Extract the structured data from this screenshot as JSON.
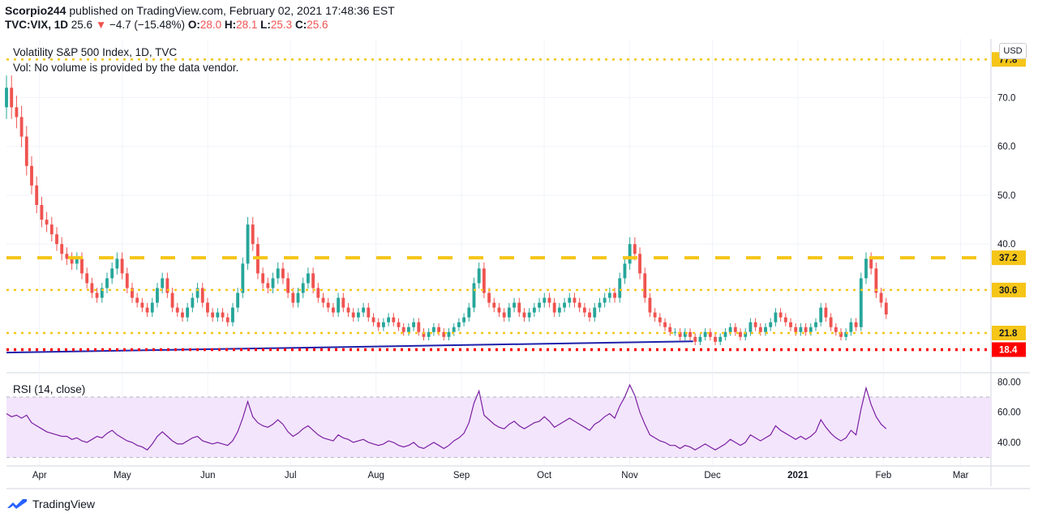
{
  "header": {
    "publisher": "Scorpio244",
    "published_text": "published on TradingView.com, February 02, 2021 17:48:36 EST",
    "symbol": "TVC:VIX, 1D",
    "last": "25.6",
    "change": "−4.7 (−15.48%)",
    "o_label": "O:",
    "o_val": "28.0",
    "h_label": "H:",
    "h_val": "28.1",
    "l_label": "L:",
    "l_val": "25.3",
    "c_label": "C:",
    "c_val": "25.6"
  },
  "panels": {
    "price_title": "Volatility S&P 500 Index, 1D, TVC",
    "volume_note": "Vol: No volume is provided by the data vendor.",
    "rsi_title": "RSI (14, close)"
  },
  "currency": "USD",
  "footer": {
    "brand": "TradingView"
  },
  "colors": {
    "up": "#26a69a",
    "down": "#ef5350",
    "level": "#f5c518",
    "support": "#ff0000",
    "trendline": "#1e22aa",
    "rsi_line": "#7b1fa2",
    "rsi_band": "#f3e5fc"
  },
  "chart_data": [
    {
      "type": "candlestick",
      "title": "Volatility S&P 500 Index, 1D, TVC",
      "ylim": [
        14,
        82
      ],
      "y_ticks": [
        40,
        50,
        60,
        70
      ],
      "x_ticks": [
        "Apr",
        "May",
        "Jun",
        "Jul",
        "Aug",
        "Sep",
        "Oct",
        "Nov",
        "Dec",
        "2021",
        "Feb",
        "Mar"
      ],
      "x_range": [
        "2020-03-20",
        "2021-03-12"
      ],
      "levels": [
        {
          "value": 77.8,
          "style": "dotted",
          "color": "#f5c518",
          "label": "77.8"
        },
        {
          "value": 37.2,
          "style": "dashed",
          "color": "#f5c518",
          "label": "37.2"
        },
        {
          "value": 30.6,
          "style": "dotted",
          "color": "#f5c518",
          "label": "30.6"
        },
        {
          "value": 21.8,
          "style": "dotted",
          "color": "#f5c518",
          "label": "21.8"
        },
        {
          "value": 18.4,
          "style": "dotted",
          "color": "#ff0000",
          "label": "18.4"
        }
      ],
      "trendline": {
        "start": [
          "2020-03-20",
          17.8
        ],
        "end": [
          "2020-11-24",
          20.1
        ]
      },
      "closes": [
        72,
        68,
        66,
        62,
        56,
        52,
        48,
        45,
        44,
        42,
        40,
        38,
        37,
        36,
        37,
        34,
        32,
        30,
        29,
        31,
        33,
        35,
        37,
        34,
        31,
        29,
        28,
        27,
        26,
        28,
        31,
        33,
        30,
        27,
        26,
        25,
        27,
        29,
        31,
        28,
        26,
        25,
        26,
        25,
        24,
        27,
        30,
        36,
        44,
        40,
        34,
        32,
        31,
        33,
        35,
        33,
        30,
        28,
        30,
        32,
        34,
        31,
        29,
        28,
        27,
        26,
        29,
        27,
        26,
        25,
        26,
        27,
        25,
        24,
        23,
        24,
        25,
        24,
        23,
        22,
        23,
        24,
        22,
        21,
        22,
        23,
        22,
        21,
        22,
        23,
        24,
        25,
        27,
        32,
        35,
        30,
        28,
        27,
        26,
        25,
        27,
        28,
        26,
        25,
        26,
        27,
        28,
        29,
        28,
        26,
        27,
        28,
        29,
        28,
        27,
        26,
        25,
        27,
        28,
        29,
        30,
        29,
        33,
        36,
        40,
        38,
        34,
        29,
        26,
        25,
        24,
        23,
        22,
        22,
        21,
        22,
        21,
        20,
        21,
        22,
        21,
        20,
        21,
        22,
        23,
        22,
        21,
        22,
        24,
        23,
        22,
        23,
        24,
        26,
        25,
        24,
        23,
        22,
        23,
        22,
        23,
        24,
        27,
        25,
        23,
        22,
        21,
        22,
        24,
        23,
        33,
        37,
        35,
        30,
        28,
        25.6
      ]
    },
    {
      "type": "line",
      "title": "RSI (14, close)",
      "ylim": [
        25,
        85
      ],
      "y_ticks": [
        40,
        60,
        80
      ],
      "band": [
        30,
        70
      ],
      "values": [
        59,
        57,
        58,
        56,
        58,
        53,
        51,
        49,
        47,
        46,
        45,
        44,
        44,
        42,
        43,
        41,
        40,
        42,
        44,
        43,
        46,
        48,
        45,
        43,
        41,
        40,
        38,
        37,
        35,
        39,
        44,
        47,
        44,
        41,
        39,
        39,
        41,
        43,
        44,
        41,
        40,
        39,
        40,
        39,
        38,
        41,
        47,
        56,
        67,
        57,
        53,
        51,
        50,
        52,
        55,
        52,
        47,
        44,
        46,
        49,
        51,
        48,
        45,
        43,
        42,
        41,
        45,
        43,
        42,
        40,
        41,
        42,
        40,
        39,
        38,
        39,
        41,
        40,
        38,
        37,
        38,
        40,
        37,
        36,
        38,
        40,
        38,
        36,
        38,
        41,
        43,
        46,
        53,
        66,
        74,
        58,
        55,
        52,
        50,
        49,
        52,
        54,
        51,
        49,
        51,
        53,
        54,
        57,
        54,
        50,
        52,
        54,
        56,
        54,
        52,
        50,
        48,
        52,
        54,
        57,
        59,
        56,
        64,
        70,
        78,
        71,
        60,
        52,
        45,
        43,
        41,
        40,
        38,
        38,
        36,
        38,
        37,
        35,
        37,
        39,
        37,
        35,
        37,
        39,
        42,
        40,
        38,
        40,
        45,
        43,
        41,
        43,
        45,
        51,
        48,
        46,
        44,
        42,
        44,
        42,
        44,
        47,
        55,
        50,
        46,
        43,
        41,
        43,
        48,
        45,
        62,
        76,
        65,
        57,
        52,
        49
      ]
    }
  ]
}
